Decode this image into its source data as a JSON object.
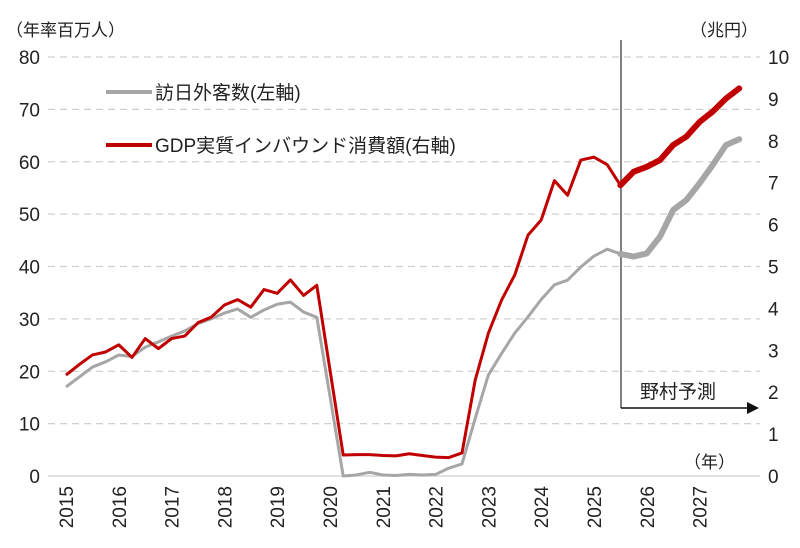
{
  "chart_data": {
    "type": "line",
    "left_unit_label": "（年率百万人）",
    "right_unit_label": "（兆円）",
    "x_unit_label": "（年）",
    "forecast_label": "野村予測",
    "forecast_start": "2025Q3",
    "x_tick_labels": [
      "2015",
      "2016",
      "2017",
      "2018",
      "2019",
      "2020",
      "2021",
      "2022",
      "2023",
      "2024",
      "2025",
      "2026",
      "2027"
    ],
    "x_frequency": "quarterly",
    "x_range": [
      "2015Q1",
      "2027Q4"
    ],
    "y_left": {
      "range": [
        0,
        80
      ],
      "ticks": [
        "0",
        "10",
        "20",
        "30",
        "40",
        "50",
        "60",
        "70",
        "80"
      ]
    },
    "y_right": {
      "range": [
        0,
        10
      ],
      "ticks": [
        "0",
        "1",
        "2",
        "3",
        "4",
        "5",
        "6",
        "7",
        "8",
        "9",
        "10"
      ]
    },
    "grid": "horizontal-dashed",
    "legend_placement": "top-left",
    "series": [
      {
        "name": "訪日外客数(左軸)",
        "axis": "left",
        "color": "#a6a6a6",
        "values": [
          17.0,
          18.9,
          20.8,
          21.8,
          23.1,
          22.8,
          24.6,
          25.6,
          26.7,
          27.7,
          29.1,
          30.0,
          31.1,
          31.9,
          30.3,
          31.7,
          32.8,
          33.2,
          31.3,
          30.3,
          15.2,
          0.0,
          0.2,
          0.7,
          0.2,
          0.1,
          0.3,
          0.2,
          0.3,
          1.5,
          2.3,
          11.0,
          19.3,
          23.4,
          27.3,
          30.4,
          33.7,
          36.5,
          37.4,
          39.9,
          42.0,
          43.3,
          42.4,
          41.9,
          42.5,
          45.7,
          50.8,
          52.7,
          55.9,
          59.4,
          63.2,
          64.3
        ]
      },
      {
        "name": "GDP実質インバウンド消費額(右軸)",
        "axis": "right",
        "color": "#c00000",
        "values": [
          2.41,
          2.66,
          2.89,
          2.96,
          3.13,
          2.83,
          3.28,
          3.04,
          3.28,
          3.34,
          3.66,
          3.79,
          4.08,
          4.21,
          4.03,
          4.45,
          4.36,
          4.68,
          4.31,
          4.55,
          2.53,
          0.5,
          0.51,
          0.51,
          0.49,
          0.48,
          0.53,
          0.49,
          0.45,
          0.44,
          0.55,
          2.29,
          3.41,
          4.2,
          4.8,
          5.75,
          6.11,
          7.05,
          6.7,
          7.54,
          7.61,
          7.43,
          6.94,
          7.26,
          7.38,
          7.54,
          7.9,
          8.1,
          8.45,
          8.7,
          9.01,
          9.25
        ]
      }
    ]
  }
}
